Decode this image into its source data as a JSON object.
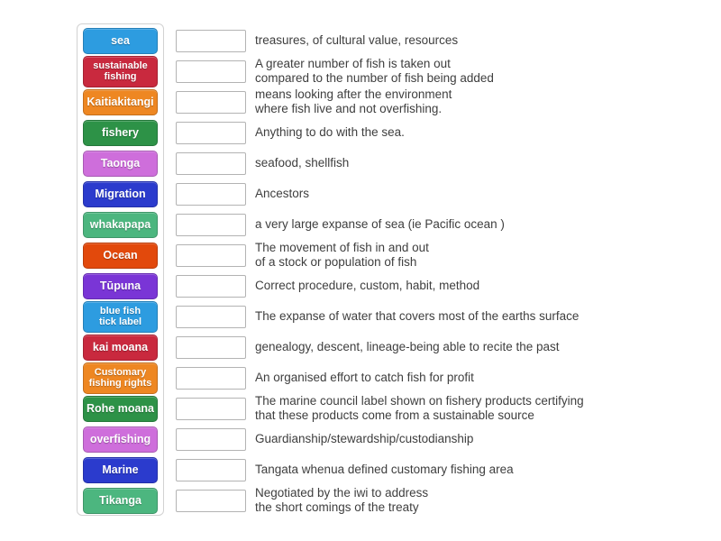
{
  "colors": {
    "blue": "#2d9ce0",
    "red": "#c9293e",
    "orange": "#ee8722",
    "green": "#2d9247",
    "orchid": "#ce6edb",
    "royal": "#2b3bcd",
    "seagreen": "#4cb67f",
    "orangered": "#e2490c",
    "purple": "#7a35d6"
  },
  "slot": {
    "border_color": "#b3b3b3"
  },
  "rows": [
    {
      "term": "sea",
      "color": "blue",
      "definition": "treasures, of cultural value, resources"
    },
    {
      "term": "sustainable\nfishing",
      "color": "red",
      "definition": "A greater number of fish is taken out\ncompared to the number of fish being added"
    },
    {
      "term": "Kaitiakitangi",
      "color": "orange",
      "definition": "means looking after the environment\nwhere fish live and not overfishing."
    },
    {
      "term": "fishery",
      "color": "green",
      "definition": "Anything to do with the sea."
    },
    {
      "term": "Taonga",
      "color": "orchid",
      "definition": "seafood, shellfish"
    },
    {
      "term": "Migration",
      "color": "royal",
      "definition": "Ancestors"
    },
    {
      "term": "whakapapa",
      "color": "seagreen",
      "definition": "a very large expanse of sea (ie Pacific ocean )"
    },
    {
      "term": "Ocean",
      "color": "orangered",
      "definition": "The movement of fish in and out\nof a stock or population of fish"
    },
    {
      "term": "Tūpuna",
      "color": "purple",
      "definition": "Correct procedure, custom, habit, method"
    },
    {
      "term": "blue fish\ntick label",
      "color": "blue",
      "definition": "The expanse of water that covers most of the earths surface"
    },
    {
      "term": "kai moana",
      "color": "red",
      "definition": "genealogy, descent, lineage-being able to recite the past"
    },
    {
      "term": "Customary\nfishing rights",
      "color": "orange",
      "definition": "An organised effort to catch fish for profit"
    },
    {
      "term": "Rohe moana",
      "color": "green",
      "definition": "The marine council label shown on fishery products certifying\nthat these products come from a sustainable source"
    },
    {
      "term": "overfishing",
      "color": "orchid",
      "definition": "Guardianship/stewardship/custodianship"
    },
    {
      "term": "Marine",
      "color": "royal",
      "definition": "Tangata whenua defined customary fishing area"
    },
    {
      "term": "Tikanga",
      "color": "seagreen",
      "definition": "Negotiated by the iwi to address\nthe short comings of the treaty"
    }
  ]
}
